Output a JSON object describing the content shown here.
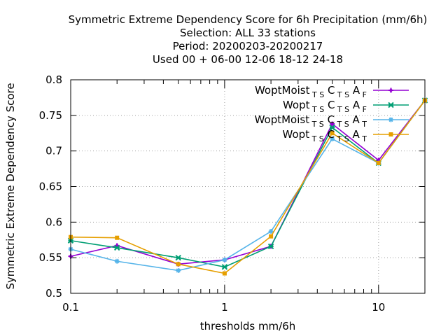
{
  "chart_data": {
    "type": "line",
    "title_lines": [
      "Symmetric Extreme Dependency Score  for 6h Precipitation (mm/6h)",
      "Selection: ALL     33 stations",
      "Period: 20200203-20200217",
      "Used  00 + 06-00 12-06 18-12 24-18"
    ],
    "xlabel": "thresholds mm/6h",
    "ylabel": "Symmetric Extreme Dependency Score",
    "xscale": "log",
    "xlim": [
      0.1,
      20
    ],
    "ylim": [
      0.5,
      0.8
    ],
    "x_ticks": [
      0.1,
      1,
      10
    ],
    "x_tick_labels": [
      "0.1",
      "1",
      "10"
    ],
    "y_ticks": [
      0.5,
      0.55,
      0.6,
      0.65,
      0.7,
      0.75,
      0.8
    ],
    "y_tick_labels": [
      "0.5",
      "0.55",
      "0.6",
      "0.65",
      "0.7",
      "0.75",
      "0.8"
    ],
    "grid": true,
    "legend_position": "top-right",
    "x": [
      0.1,
      0.2,
      0.5,
      1,
      2,
      5,
      10,
      20
    ],
    "series": [
      {
        "name": "WoptMoist",
        "sub": "T S",
        "mid": "C",
        "sub2": "T S",
        "end": "A",
        "sub3": "F",
        "color": "#9400d3",
        "marker": "plus",
        "values": [
          0.552,
          0.567,
          0.541,
          0.547,
          0.566,
          0.738,
          0.687,
          0.771
        ]
      },
      {
        "name": "Wopt",
        "sub": "T S",
        "mid": "C",
        "sub2": "T S",
        "end": "A",
        "sub3": "F",
        "color": "#009e73",
        "marker": "cross",
        "values": [
          0.574,
          0.564,
          0.55,
          0.537,
          0.566,
          0.733,
          0.683,
          0.771
        ]
      },
      {
        "name": "WoptMoist",
        "sub": "T S",
        "mid": "C",
        "sub2": "T S",
        "end": "A",
        "sub3": "T",
        "color": "#56b4e9",
        "marker": "star",
        "values": [
          0.562,
          0.545,
          0.532,
          0.547,
          0.587,
          0.717,
          0.683,
          0.771
        ]
      },
      {
        "name": "Wopt",
        "sub": "T S",
        "mid": "C",
        "sub2": "T S",
        "end": "A",
        "sub3": "T",
        "color": "#e69f00",
        "marker": "square",
        "values": [
          0.579,
          0.578,
          0.541,
          0.528,
          0.58,
          0.725,
          0.683,
          0.771
        ]
      }
    ]
  }
}
